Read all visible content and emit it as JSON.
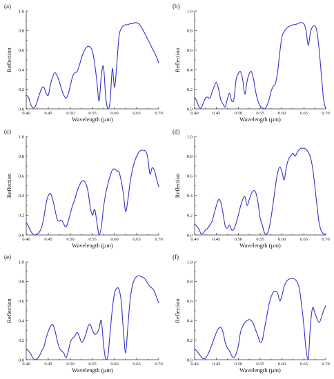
{
  "chart_data": [
    {
      "panel_label": "(a)",
      "type": "line",
      "xlabel": "Wavelength (µm)",
      "ylabel": "Reflection",
      "xlim": [
        0.4,
        0.7
      ],
      "ylim": [
        0.0,
        1.0
      ],
      "xticks": [
        "0.40",
        "0.45",
        "0.50",
        "0.55",
        "0.60",
        "0.65",
        "0.70"
      ],
      "yticks": [
        "0.0",
        "0.2",
        "0.4",
        "0.6",
        "0.8",
        "1.0"
      ],
      "color": "#3333cc",
      "x": [
        0.4,
        0.405,
        0.41,
        0.415,
        0.42,
        0.425,
        0.43,
        0.435,
        0.44,
        0.445,
        0.45,
        0.455,
        0.46,
        0.465,
        0.47,
        0.475,
        0.48,
        0.485,
        0.49,
        0.495,
        0.5,
        0.505,
        0.51,
        0.515,
        0.52,
        0.525,
        0.53,
        0.535,
        0.54,
        0.545,
        0.55,
        0.555,
        0.56,
        0.565,
        0.57,
        0.575,
        0.58,
        0.585,
        0.59,
        0.595,
        0.6,
        0.605,
        0.61,
        0.615,
        0.62,
        0.625,
        0.63,
        0.635,
        0.64,
        0.645,
        0.65,
        0.655,
        0.66,
        0.665,
        0.67,
        0.675,
        0.68,
        0.685,
        0.69,
        0.695,
        0.7
      ],
      "values": [
        0.14,
        0.12,
        0.05,
        0.01,
        0.02,
        0.08,
        0.15,
        0.21,
        0.22,
        0.16,
        0.14,
        0.25,
        0.33,
        0.37,
        0.34,
        0.28,
        0.2,
        0.14,
        0.11,
        0.15,
        0.24,
        0.33,
        0.37,
        0.38,
        0.44,
        0.52,
        0.58,
        0.62,
        0.64,
        0.63,
        0.59,
        0.46,
        0.28,
        0.08,
        0.34,
        0.43,
        0.12,
        0.0,
        0.08,
        0.41,
        0.22,
        0.45,
        0.74,
        0.82,
        0.85,
        0.86,
        0.86,
        0.87,
        0.87,
        0.88,
        0.88,
        0.87,
        0.84,
        0.8,
        0.76,
        0.71,
        0.67,
        0.62,
        0.58,
        0.53,
        0.47
      ]
    },
    {
      "panel_label": "(b)",
      "type": "line",
      "xlabel": "Wavelength (µm)",
      "ylabel": "Reflection",
      "xlim": [
        0.4,
        0.7
      ],
      "ylim": [
        0.0,
        1.0
      ],
      "xticks": [
        "0.40",
        "0.45",
        "0.50",
        "0.55",
        "0.60",
        "0.65",
        "0.70"
      ],
      "yticks": [
        "0.0",
        "0.2",
        "0.4",
        "0.6",
        "0.8",
        "1.0"
      ],
      "color": "#3333cc",
      "x": [
        0.4,
        0.405,
        0.41,
        0.415,
        0.42,
        0.425,
        0.43,
        0.435,
        0.44,
        0.445,
        0.45,
        0.455,
        0.46,
        0.465,
        0.47,
        0.475,
        0.48,
        0.485,
        0.49,
        0.495,
        0.5,
        0.505,
        0.51,
        0.515,
        0.52,
        0.525,
        0.53,
        0.535,
        0.54,
        0.545,
        0.55,
        0.555,
        0.56,
        0.565,
        0.57,
        0.575,
        0.58,
        0.585,
        0.59,
        0.595,
        0.6,
        0.605,
        0.61,
        0.615,
        0.62,
        0.625,
        0.63,
        0.635,
        0.64,
        0.645,
        0.65,
        0.655,
        0.66,
        0.665,
        0.67,
        0.675,
        0.68,
        0.685,
        0.69,
        0.695,
        0.7
      ],
      "values": [
        0.12,
        0.08,
        0.02,
        0.01,
        0.06,
        0.11,
        0.12,
        0.11,
        0.17,
        0.23,
        0.27,
        0.2,
        0.09,
        0.05,
        0.02,
        0.1,
        0.16,
        0.08,
        0.1,
        0.3,
        0.36,
        0.38,
        0.3,
        0.15,
        0.28,
        0.36,
        0.38,
        0.3,
        0.17,
        0.08,
        0.03,
        0.01,
        0.0,
        0.03,
        0.09,
        0.18,
        0.23,
        0.26,
        0.38,
        0.58,
        0.74,
        0.79,
        0.82,
        0.84,
        0.85,
        0.86,
        0.86,
        0.87,
        0.88,
        0.88,
        0.87,
        0.8,
        0.65,
        0.78,
        0.84,
        0.85,
        0.79,
        0.6,
        0.35,
        0.1,
        0.0
      ]
    },
    {
      "panel_label": "(c)",
      "type": "line",
      "xlabel": "Wavelength (µm)",
      "ylabel": "Reflection",
      "xlim": [
        0.4,
        0.7
      ],
      "ylim": [
        0.0,
        1.0
      ],
      "xticks": [
        "0.40",
        "0.45",
        "0.50",
        "0.55",
        "0.60",
        "0.65",
        "0.70"
      ],
      "yticks": [
        "0.0",
        "0.2",
        "0.4",
        "0.6",
        "0.8",
        "1.0"
      ],
      "color": "#3333cc",
      "x": [
        0.4,
        0.405,
        0.41,
        0.415,
        0.42,
        0.425,
        0.43,
        0.435,
        0.44,
        0.445,
        0.45,
        0.455,
        0.46,
        0.465,
        0.47,
        0.475,
        0.48,
        0.485,
        0.49,
        0.495,
        0.5,
        0.505,
        0.51,
        0.515,
        0.52,
        0.525,
        0.53,
        0.535,
        0.54,
        0.545,
        0.55,
        0.555,
        0.56,
        0.565,
        0.57,
        0.575,
        0.58,
        0.585,
        0.59,
        0.595,
        0.6,
        0.605,
        0.61,
        0.615,
        0.62,
        0.625,
        0.63,
        0.635,
        0.64,
        0.645,
        0.65,
        0.655,
        0.66,
        0.665,
        0.67,
        0.675,
        0.68,
        0.685,
        0.69,
        0.695,
        0.7
      ],
      "values": [
        0.13,
        0.09,
        0.04,
        0.01,
        0.0,
        0.01,
        0.03,
        0.08,
        0.18,
        0.32,
        0.4,
        0.42,
        0.36,
        0.26,
        0.16,
        0.14,
        0.15,
        0.11,
        0.08,
        0.14,
        0.22,
        0.3,
        0.36,
        0.44,
        0.5,
        0.54,
        0.55,
        0.52,
        0.44,
        0.28,
        0.2,
        0.26,
        0.13,
        0.0,
        0.08,
        0.28,
        0.42,
        0.52,
        0.6,
        0.66,
        0.67,
        0.65,
        0.64,
        0.55,
        0.42,
        0.24,
        0.35,
        0.53,
        0.65,
        0.74,
        0.8,
        0.84,
        0.86,
        0.86,
        0.85,
        0.79,
        0.62,
        0.68,
        0.66,
        0.57,
        0.49
      ]
    },
    {
      "panel_label": "(d)",
      "type": "line",
      "xlabel": "Wavelength (µm)",
      "ylabel": "Reflection",
      "xlim": [
        0.4,
        0.7
      ],
      "ylim": [
        0.0,
        1.0
      ],
      "xticks": [
        "0.40",
        "0.45",
        "0.50",
        "0.55",
        "0.60",
        "0.65",
        "0.70"
      ],
      "yticks": [
        "0.0",
        "0.2",
        "0.4",
        "0.6",
        "0.8",
        "1.0"
      ],
      "color": "#3333cc",
      "x": [
        0.4,
        0.405,
        0.41,
        0.415,
        0.42,
        0.425,
        0.43,
        0.435,
        0.44,
        0.445,
        0.45,
        0.455,
        0.46,
        0.465,
        0.47,
        0.475,
        0.48,
        0.485,
        0.49,
        0.495,
        0.5,
        0.505,
        0.51,
        0.515,
        0.52,
        0.525,
        0.53,
        0.535,
        0.54,
        0.545,
        0.55,
        0.555,
        0.56,
        0.565,
        0.57,
        0.575,
        0.58,
        0.585,
        0.59,
        0.595,
        0.6,
        0.605,
        0.61,
        0.615,
        0.62,
        0.625,
        0.63,
        0.635,
        0.64,
        0.645,
        0.65,
        0.655,
        0.66,
        0.665,
        0.67,
        0.675,
        0.68,
        0.685,
        0.69,
        0.695,
        0.7
      ],
      "values": [
        0.11,
        0.09,
        0.06,
        0.01,
        0.02,
        0.05,
        0.07,
        0.1,
        0.14,
        0.22,
        0.3,
        0.36,
        0.33,
        0.22,
        0.09,
        0.07,
        0.1,
        0.05,
        0.06,
        0.12,
        0.2,
        0.29,
        0.36,
        0.39,
        0.3,
        0.36,
        0.42,
        0.45,
        0.43,
        0.33,
        0.17,
        0.1,
        0.02,
        0.01,
        0.06,
        0.18,
        0.33,
        0.5,
        0.63,
        0.69,
        0.64,
        0.56,
        0.69,
        0.77,
        0.8,
        0.83,
        0.8,
        0.84,
        0.87,
        0.88,
        0.88,
        0.87,
        0.84,
        0.79,
        0.68,
        0.5,
        0.3,
        0.12,
        0.04,
        0.01,
        0.0
      ]
    },
    {
      "panel_label": "(e)",
      "type": "line",
      "xlabel": "Wavelength (µm)",
      "ylabel": "Reflection",
      "xlim": [
        0.4,
        0.7
      ],
      "ylim": [
        0.0,
        1.0
      ],
      "xticks": [
        "0.40",
        "0.45",
        "0.50",
        "0.55",
        "0.60",
        "0.65",
        "0.70"
      ],
      "yticks": [
        "0.0",
        "0.2",
        "0.4",
        "0.6",
        "0.8",
        "1.0"
      ],
      "color": "#3333cc",
      "x": [
        0.4,
        0.405,
        0.41,
        0.415,
        0.42,
        0.425,
        0.43,
        0.435,
        0.44,
        0.445,
        0.45,
        0.455,
        0.46,
        0.465,
        0.47,
        0.475,
        0.48,
        0.485,
        0.49,
        0.495,
        0.5,
        0.505,
        0.51,
        0.515,
        0.52,
        0.525,
        0.53,
        0.535,
        0.54,
        0.545,
        0.55,
        0.555,
        0.56,
        0.565,
        0.57,
        0.575,
        0.58,
        0.585,
        0.59,
        0.595,
        0.6,
        0.605,
        0.61,
        0.615,
        0.62,
        0.625,
        0.63,
        0.635,
        0.64,
        0.645,
        0.65,
        0.655,
        0.66,
        0.665,
        0.67,
        0.675,
        0.68,
        0.685,
        0.69,
        0.695,
        0.7
      ],
      "values": [
        0.11,
        0.09,
        0.06,
        0.02,
        0.0,
        0.01,
        0.04,
        0.09,
        0.13,
        0.22,
        0.29,
        0.34,
        0.36,
        0.3,
        0.2,
        0.12,
        0.09,
        0.07,
        0.02,
        0.08,
        0.18,
        0.22,
        0.24,
        0.28,
        0.24,
        0.18,
        0.2,
        0.26,
        0.34,
        0.36,
        0.3,
        0.26,
        0.27,
        0.32,
        0.4,
        0.16,
        0.0,
        0.04,
        0.28,
        0.52,
        0.68,
        0.73,
        0.72,
        0.6,
        0.3,
        0.07,
        0.33,
        0.6,
        0.75,
        0.82,
        0.85,
        0.86,
        0.85,
        0.84,
        0.82,
        0.78,
        0.75,
        0.73,
        0.7,
        0.64,
        0.58
      ]
    },
    {
      "panel_label": "(f)",
      "type": "line",
      "xlabel": "Wavelength (µm)",
      "ylabel": "Reflection",
      "xlim": [
        0.4,
        0.7
      ],
      "ylim": [
        0.0,
        1.0
      ],
      "xticks": [
        "0.40",
        "0.45",
        "0.50",
        "0.55",
        "0.60",
        "0.65",
        "0.70"
      ],
      "yticks": [
        "0.0",
        "0.2",
        "0.4",
        "0.6",
        "0.8",
        "1.0"
      ],
      "color": "#3333cc",
      "x": [
        0.4,
        0.405,
        0.41,
        0.415,
        0.42,
        0.425,
        0.43,
        0.435,
        0.44,
        0.445,
        0.45,
        0.455,
        0.46,
        0.465,
        0.47,
        0.475,
        0.48,
        0.485,
        0.49,
        0.495,
        0.5,
        0.505,
        0.51,
        0.515,
        0.52,
        0.525,
        0.53,
        0.535,
        0.54,
        0.545,
        0.55,
        0.555,
        0.56,
        0.565,
        0.57,
        0.575,
        0.58,
        0.585,
        0.59,
        0.595,
        0.6,
        0.605,
        0.61,
        0.615,
        0.62,
        0.625,
        0.63,
        0.635,
        0.64,
        0.645,
        0.65,
        0.655,
        0.66,
        0.665,
        0.67,
        0.675,
        0.68,
        0.685,
        0.69,
        0.695,
        0.7
      ],
      "values": [
        0.11,
        0.09,
        0.06,
        0.03,
        0.01,
        0.02,
        0.05,
        0.1,
        0.16,
        0.22,
        0.28,
        0.32,
        0.33,
        0.28,
        0.18,
        0.12,
        0.09,
        0.04,
        0.02,
        0.06,
        0.14,
        0.28,
        0.34,
        0.38,
        0.4,
        0.41,
        0.4,
        0.36,
        0.3,
        0.24,
        0.18,
        0.2,
        0.32,
        0.44,
        0.56,
        0.64,
        0.69,
        0.7,
        0.68,
        0.6,
        0.66,
        0.75,
        0.8,
        0.82,
        0.83,
        0.83,
        0.82,
        0.79,
        0.72,
        0.55,
        0.35,
        0.1,
        0.0,
        0.35,
        0.53,
        0.48,
        0.42,
        0.38,
        0.43,
        0.5,
        0.55
      ]
    }
  ]
}
